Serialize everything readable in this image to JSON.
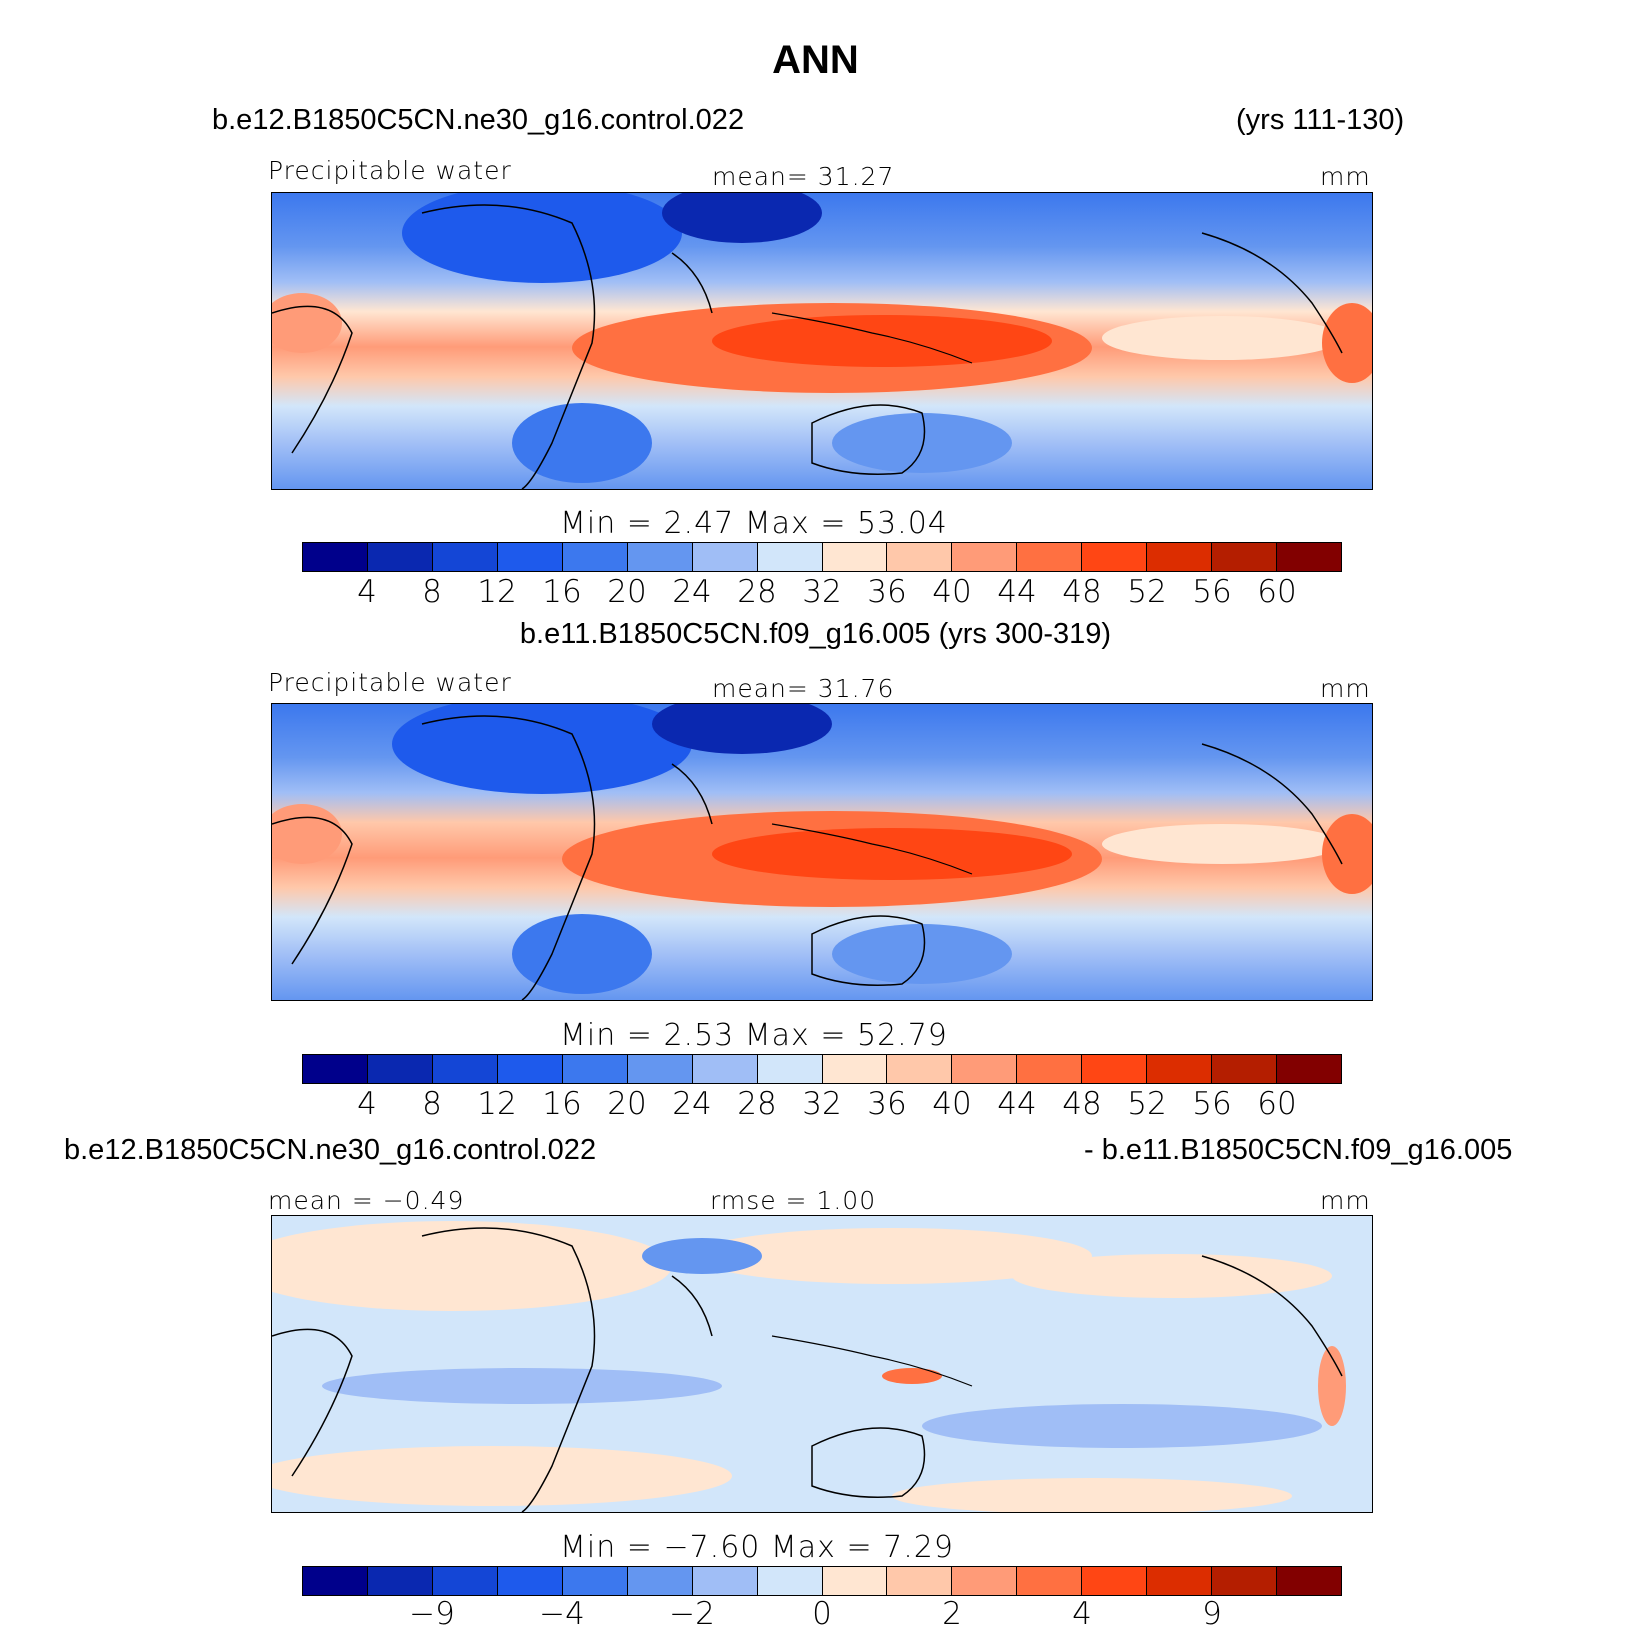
{
  "title": "ANN",
  "panels": [
    {
      "case_left": "b.e12.B1850C5CN.ne30_g16.control.022",
      "case_right": "(yrs 111-130)",
      "var_label": "Precipitable water",
      "mean_label": "mean=   31.27",
      "units": "mm",
      "minmax": "Min  =     2.47  Max  =    53.04",
      "mean": 31.27,
      "min": 2.47,
      "max": 53.04
    },
    {
      "case_center": "b.e11.B1850C5CN.f09_g16.005 (yrs 300-319)",
      "var_label": "Precipitable water",
      "mean_label": "mean=   31.76",
      "units": "mm",
      "minmax": "Min  =     2.53  Max  =    52.79",
      "mean": 31.76,
      "min": 2.53,
      "max": 52.79
    },
    {
      "case_left": "b.e12.B1850C5CN.ne30_g16.control.022",
      "case_right": "- b.e11.B1850C5CN.f09_g16.005",
      "mean_label": "mean =   −0.49",
      "rmse_label": "rmse =    1.00",
      "units": "mm",
      "minmax": "Min  =   −7.60  Max  =     7.29",
      "mean": -0.49,
      "rmse": 1.0,
      "min": -7.6,
      "max": 7.29
    }
  ],
  "colorbar": {
    "colors": [
      "#00008b",
      "#0a28b0",
      "#1446d6",
      "#1e5aec",
      "#3c78ee",
      "#6496f0",
      "#a0bef6",
      "#d2e6fa",
      "#ffe6d2",
      "#ffc8aa",
      "#ff9b78",
      "#ff7041",
      "#ff4614",
      "#dc2d00",
      "#b41e00",
      "#820000"
    ],
    "ticks_abs": [
      "4",
      "8",
      "12",
      "16",
      "20",
      "24",
      "28",
      "32",
      "36",
      "40",
      "44",
      "48",
      "52",
      "56",
      "60"
    ],
    "ticks_diff": [
      "−9",
      "",
      "−4",
      "",
      "−2",
      "",
      "0",
      "",
      "2",
      "",
      "4",
      "",
      "9"
    ]
  }
}
